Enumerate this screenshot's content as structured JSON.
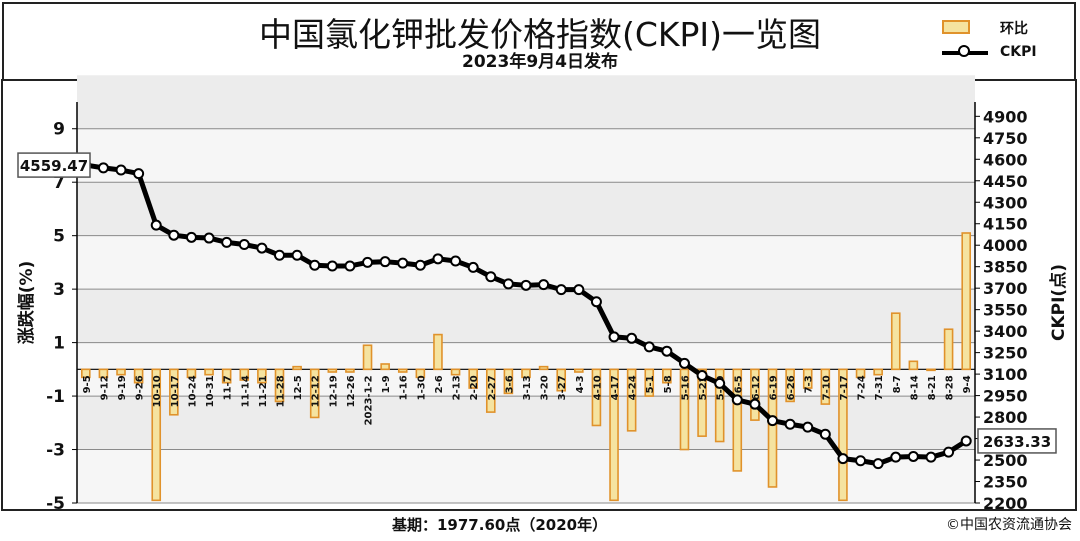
{
  "title": "中国氯化钾批发价格指数(CKPI)一览图",
  "subtitle": "2023年9月4日发布",
  "legend": {
    "bar_label": "环比",
    "line_label": "CKPI"
  },
  "footer": {
    "base": "基期：1977.60点（2020年）",
    "copyright": "©中国农资流通协会"
  },
  "colors": {
    "bar_fill": "#f5e3a0",
    "bar_stroke": "#e0922b",
    "line": "#000000",
    "grid_band": "#ececec"
  },
  "chart_data": {
    "type": "bar+line",
    "categories": [
      "9-5",
      "9-12",
      "9-19",
      "9-26",
      "10-10",
      "10-17",
      "10-24",
      "10-31",
      "11-7",
      "11-14",
      "11-21",
      "11-28",
      "12-5",
      "12-12",
      "12-19",
      "12-26",
      "2023-1-2",
      "1-9",
      "1-16",
      "1-30",
      "2-6",
      "2-13",
      "2-20",
      "2-27",
      "3-6",
      "3-13",
      "3-20",
      "3-27",
      "4-3",
      "4-10",
      "4-17",
      "4-24",
      "5-1",
      "5-8",
      "5-16",
      "5-22",
      "5-29",
      "6-5",
      "6-12",
      "6-19",
      "6-26",
      "7-3",
      "7-10",
      "7-17",
      "7-24",
      "7-31",
      "8-7",
      "8-14",
      "8-21",
      "8-28",
      "9-4"
    ],
    "series": [
      {
        "name": "环比",
        "axis": "left",
        "type": "bar",
        "values": [
          -0.3,
          -0.3,
          -0.2,
          -0.5,
          -4.9,
          -1.7,
          -0.3,
          -0.2,
          -0.5,
          -0.4,
          -0.5,
          -1.2,
          0.1,
          -1.8,
          -0.1,
          -0.1,
          0.9,
          0.2,
          -0.1,
          -0.3,
          1.3,
          -0.2,
          -0.7,
          -1.6,
          -0.9,
          -0.3,
          0.1,
          -0.8,
          -0.1,
          -2.1,
          -4.9,
          -2.3,
          -1.0,
          -0.5,
          -3.0,
          -2.5,
          -2.7,
          -3.8,
          -1.9,
          -4.4,
          -1.2,
          -0.7,
          -1.3,
          -4.9,
          -0.3,
          -0.2,
          2.1,
          0.3,
          0.0,
          1.5,
          5.1
        ]
      },
      {
        "name": "CKPI",
        "axis": "right",
        "type": "line",
        "values": [
          4559.47,
          4540,
          4525,
          4500,
          4140,
          4070,
          4055,
          4050,
          4020,
          4005,
          3980,
          3930,
          3930,
          3860,
          3855,
          3855,
          3880,
          3885,
          3875,
          3860,
          3905,
          3890,
          3845,
          3780,
          3730,
          3720,
          3725,
          3690,
          3690,
          3605,
          3360,
          3350,
          3290,
          3260,
          3175,
          3090,
          3035,
          2920,
          2890,
          2775,
          2750,
          2730,
          2680,
          2510,
          2495,
          2475,
          2520,
          2525,
          2520,
          2555,
          2633.33
        ]
      }
    ],
    "y_left": {
      "label": "涨跌幅(%)",
      "range": [
        -5,
        10
      ],
      "ticks": [
        "-5",
        "-3",
        "-1",
        "1",
        "3",
        "5",
        "7",
        "9"
      ]
    },
    "y_right": {
      "label": "CKPI(点)",
      "range": [
        2200,
        5000
      ],
      "ticks": [
        "2200",
        "2350",
        "2500",
        "2650",
        "2800",
        "2950",
        "3100",
        "3250",
        "3400",
        "3550",
        "3700",
        "3850",
        "4000",
        "4150",
        "4300",
        "4450",
        "4600",
        "4750",
        "4900"
      ]
    },
    "callouts": {
      "start": "4559.47",
      "end": "2633.33"
    },
    "grid": "alternating horizontal bands"
  }
}
